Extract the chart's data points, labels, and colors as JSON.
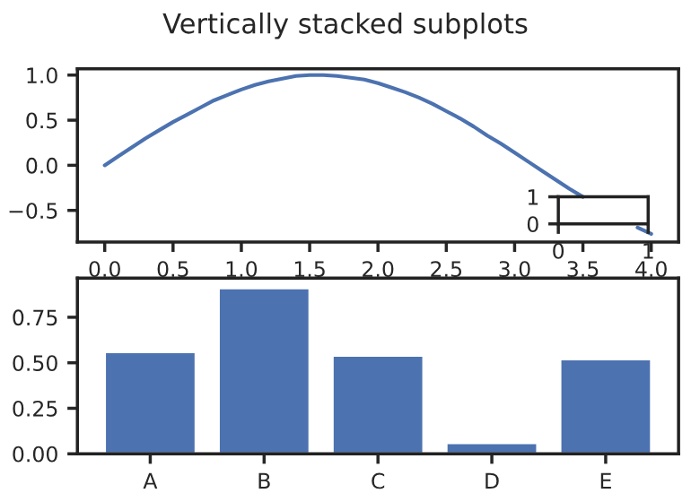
{
  "chart_data": [
    {
      "type": "line",
      "title": "Vertically stacked subplots",
      "x": [
        0,
        0.1,
        0.2,
        0.3,
        0.4,
        0.5,
        0.6,
        0.7,
        0.8,
        0.9,
        1.0,
        1.1,
        1.2,
        1.3,
        1.4,
        1.5,
        1.6,
        1.7,
        1.8,
        1.9,
        2.0,
        2.1,
        2.2,
        2.3,
        2.4,
        2.5,
        2.6,
        2.7,
        2.8,
        2.9,
        3.0,
        3.1,
        3.2,
        3.3,
        3.4,
        3.5,
        3.6,
        3.7,
        3.8,
        3.9,
        4.0
      ],
      "series": [
        {
          "color": "#4c72b0",
          "values": [
            0,
            0.1,
            0.2,
            0.3,
            0.39,
            0.48,
            0.56,
            0.64,
            0.72,
            0.78,
            0.84,
            0.89,
            0.93,
            0.96,
            0.99,
            1.0,
            1.0,
            0.99,
            0.97,
            0.95,
            0.91,
            0.86,
            0.81,
            0.75,
            0.68,
            0.6,
            0.52,
            0.43,
            0.33,
            0.24,
            0.14,
            0.04,
            -0.06,
            -0.16,
            -0.26,
            -0.35,
            null,
            null,
            null,
            -0.69,
            -0.76
          ]
        }
      ],
      "xlim": [
        -0.2,
        4.2
      ],
      "ylim": [
        -0.85,
        1.07
      ],
      "xticks": [
        {
          "value": 0,
          "label": "0.0"
        },
        0.5,
        {
          "value": 1,
          "label": "1.0"
        },
        1.5,
        {
          "value": 2,
          "label": "2.0"
        },
        2.5,
        {
          "value": 3,
          "label": "3.0"
        },
        3.5,
        {
          "value": 4,
          "label": "4.0"
        }
      ],
      "yticks": [
        {
          "value": -0.5,
          "label": "−0.5"
        },
        {
          "value": 0,
          "label": "0.0"
        },
        0.5,
        {
          "value": 1,
          "label": "1.0"
        }
      ],
      "grid": false,
      "legend": false
    },
    {
      "type": "bar",
      "categories": [
        "A",
        "B",
        "C",
        "D",
        "E"
      ],
      "values": [
        0.56,
        0.91,
        0.54,
        0.06,
        0.52
      ],
      "color": "#4c72b0",
      "ylim": [
        0,
        0.965
      ],
      "yticks": [
        {
          "value": 0,
          "label": "0.00"
        },
        0.25,
        {
          "value": 0.5,
          "label": "0.50"
        },
        0.75
      ],
      "grid": false,
      "legend": false
    },
    {
      "type": "line",
      "xlim": [
        0,
        1
      ],
      "ylim": [
        0,
        1
      ],
      "xticks": [
        0,
        1
      ],
      "yticks": [
        0,
        1
      ]
    }
  ]
}
